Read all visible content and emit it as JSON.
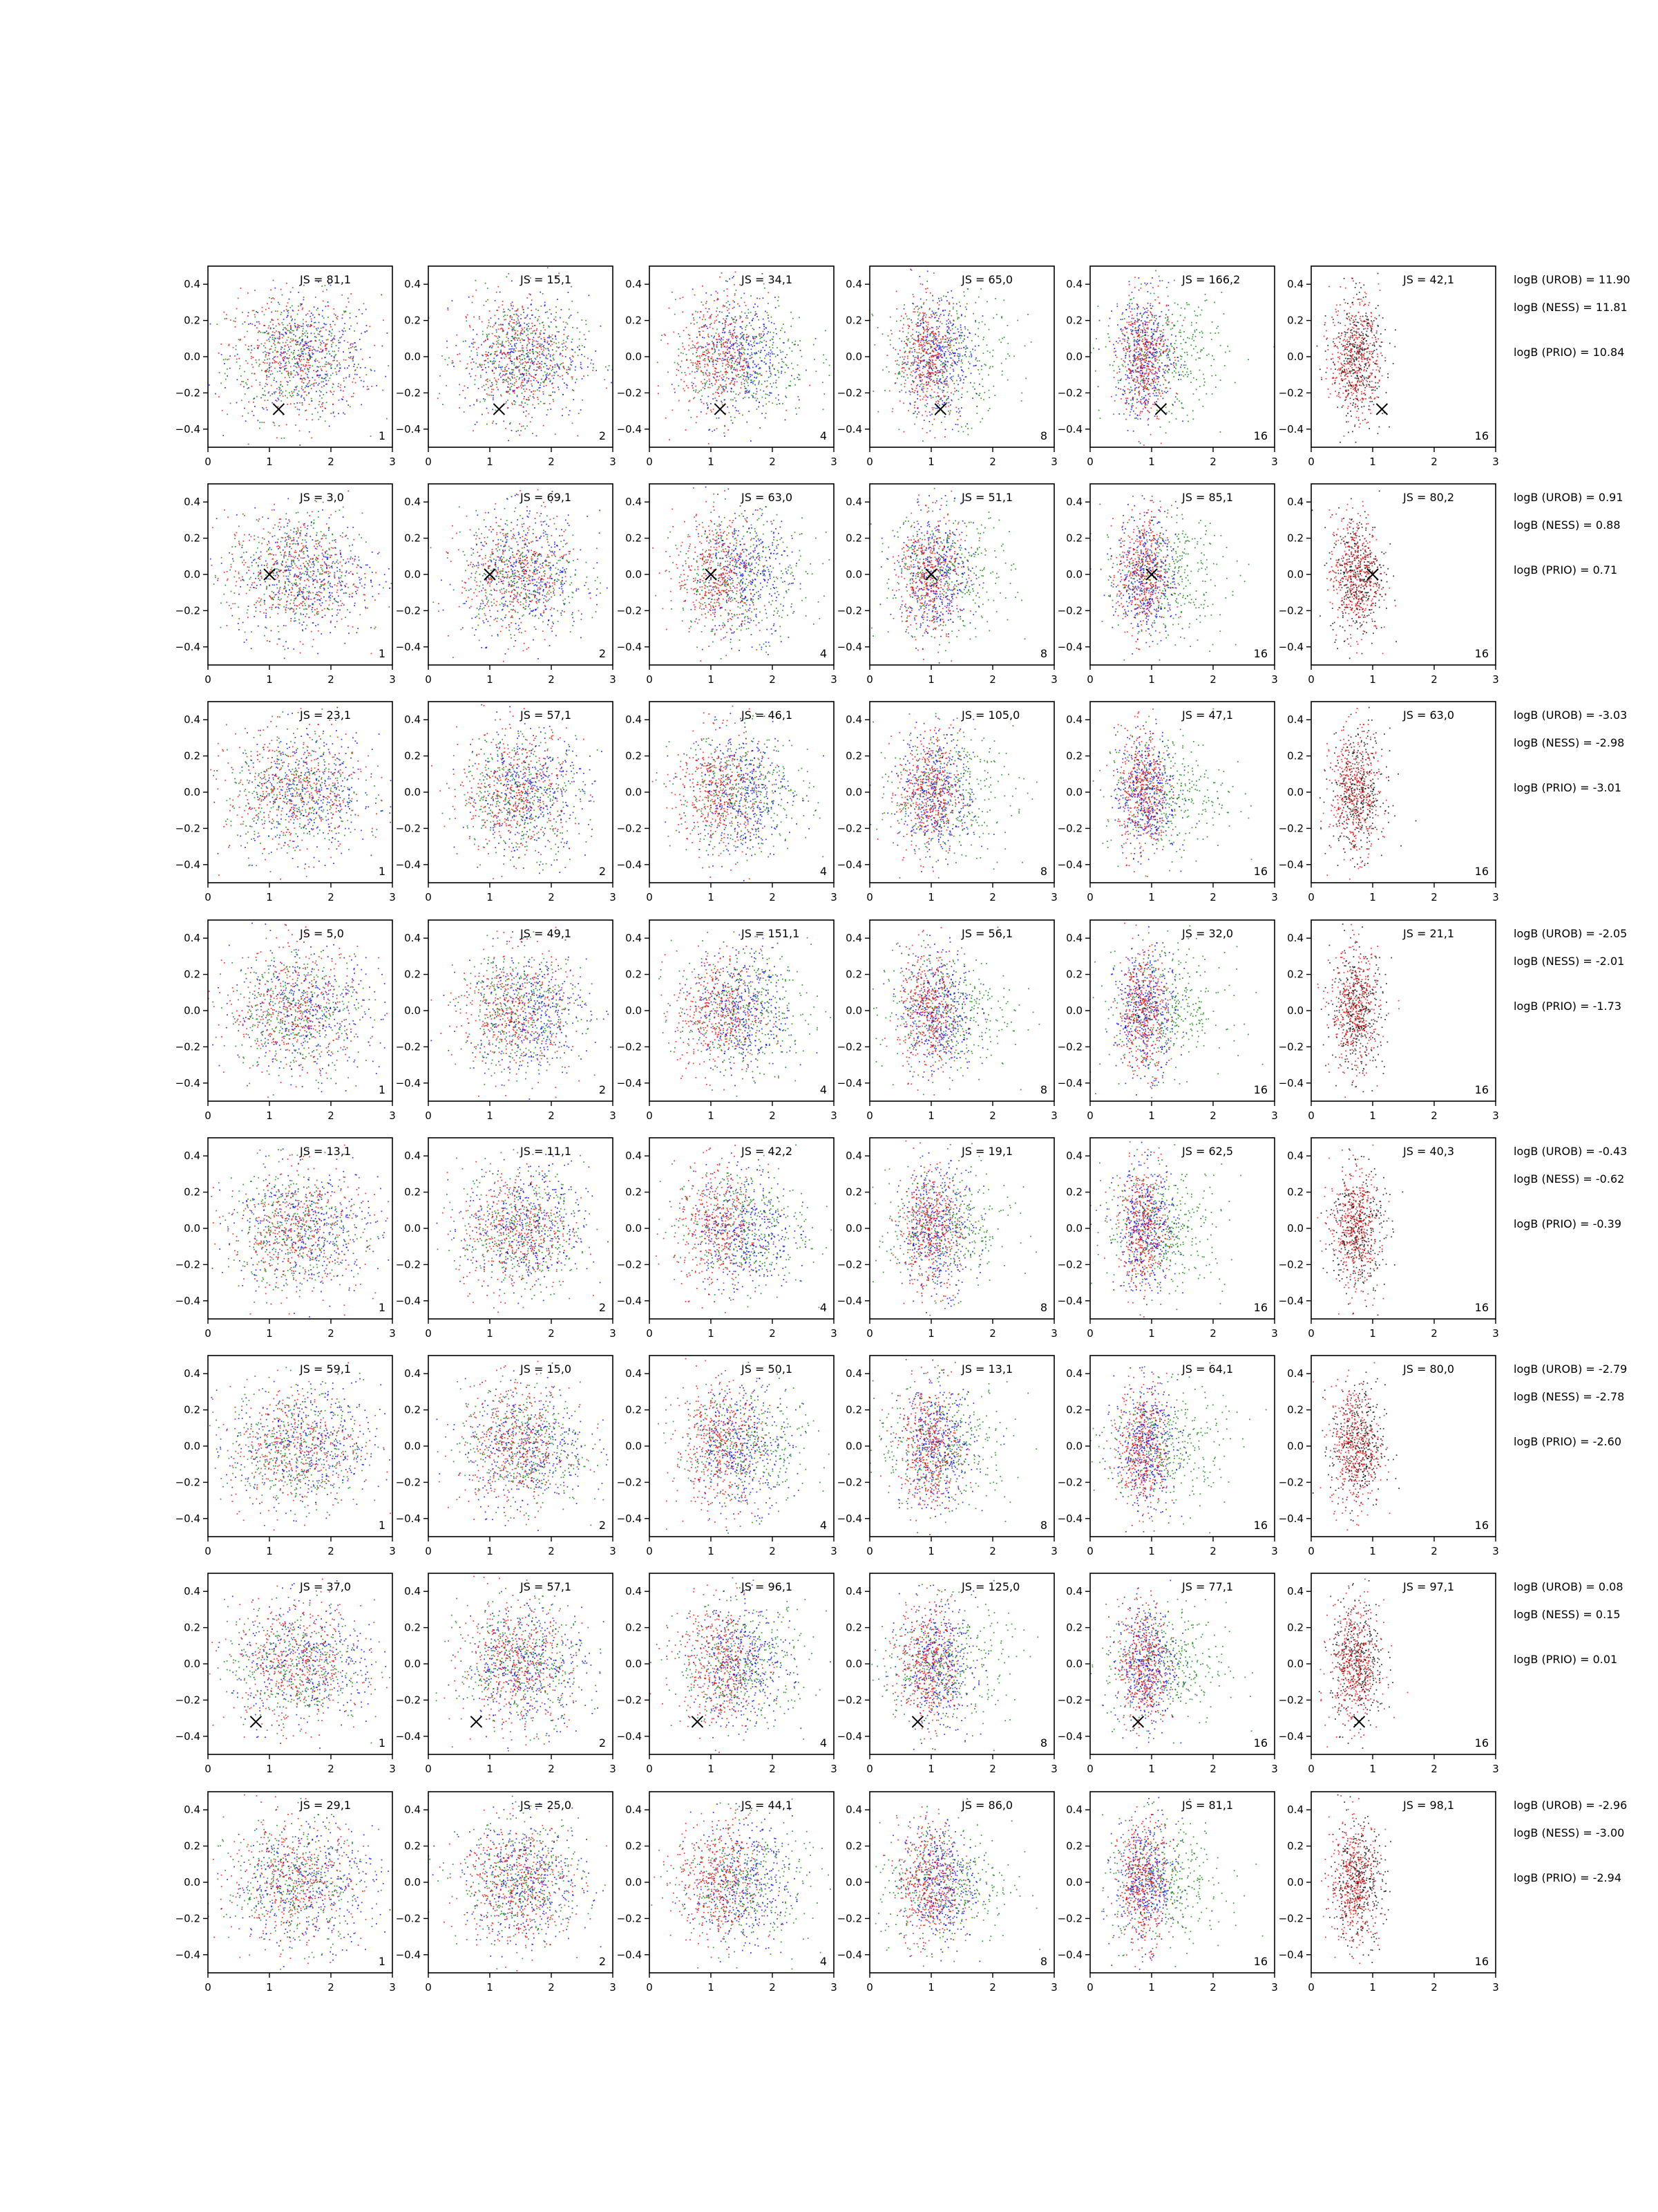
{
  "figure": {
    "axes": {
      "xlim": [
        0,
        3
      ],
      "ylim": [
        -0.5,
        0.5
      ],
      "xticks": [
        "0",
        "1",
        "2",
        "3"
      ],
      "yticks": [
        "0.4",
        "0.2",
        "0.0",
        "−0.2",
        "−0.4"
      ]
    },
    "colors": {
      "red": "#ff0000",
      "green": "#008000",
      "blue": "#0000ff",
      "black": "#000000"
    }
  },
  "chart_data": {
    "type": "scatter",
    "grid": false,
    "rows": [
      {
        "panels": [
          {
            "js": "JS = 81,1",
            "label": "1"
          },
          {
            "js": "JS = 15,1",
            "label": "2"
          },
          {
            "js": "JS = 34,1",
            "label": "4"
          },
          {
            "js": "JS = 65,0",
            "label": "8"
          },
          {
            "js": "JS = 166,2",
            "label": "16"
          },
          {
            "js": "JS = 42,1",
            "label": "16"
          }
        ],
        "marker": [
          1.15,
          -0.29
        ],
        "annotations": [
          "logB (UROB) = 11.90",
          "logB (NESS) = 11.81",
          "logB (PRIO) = 10.84"
        ]
      },
      {
        "panels": [
          {
            "js": "JS = 3,0",
            "label": "1"
          },
          {
            "js": "JS = 69,1",
            "label": "2"
          },
          {
            "js": "JS = 63,0",
            "label": "4"
          },
          {
            "js": "JS = 51,1",
            "label": "8"
          },
          {
            "js": "JS = 85,1",
            "label": "16"
          },
          {
            "js": "JS = 80,2",
            "label": "16"
          }
        ],
        "marker": [
          1.0,
          0.0
        ],
        "annotations": [
          "logB (UROB) = 0.91",
          "logB (NESS) = 0.88",
          "logB (PRIO) = 0.71"
        ]
      },
      {
        "panels": [
          {
            "js": "JS = 23,1",
            "label": "1"
          },
          {
            "js": "JS = 57,1",
            "label": "2"
          },
          {
            "js": "JS = 46,1",
            "label": "4"
          },
          {
            "js": "JS = 105,0",
            "label": "8"
          },
          {
            "js": "JS = 47,1",
            "label": "16"
          },
          {
            "js": "JS = 63,0",
            "label": "16"
          }
        ],
        "marker": null,
        "annotations": [
          "logB (UROB) = -3.03",
          "logB (NESS) = -2.98",
          "logB (PRIO) = -3.01"
        ]
      },
      {
        "panels": [
          {
            "js": "JS = 5,0",
            "label": "1"
          },
          {
            "js": "JS = 49,1",
            "label": "2"
          },
          {
            "js": "JS = 151,1",
            "label": "4"
          },
          {
            "js": "JS = 56,1",
            "label": "8"
          },
          {
            "js": "JS = 32,0",
            "label": "16"
          },
          {
            "js": "JS = 21,1",
            "label": "16"
          }
        ],
        "marker": null,
        "annotations": [
          "logB (UROB) = -2.05",
          "logB (NESS) = -2.01",
          "logB (PRIO) = -1.73"
        ]
      },
      {
        "panels": [
          {
            "js": "JS = 13,1",
            "label": "1"
          },
          {
            "js": "JS = 11,1",
            "label": "2"
          },
          {
            "js": "JS = 42,2",
            "label": "4"
          },
          {
            "js": "JS = 19,1",
            "label": "8"
          },
          {
            "js": "JS = 62,5",
            "label": "16"
          },
          {
            "js": "JS = 40,3",
            "label": "16"
          }
        ],
        "marker": null,
        "annotations": [
          "logB (UROB) = -0.43",
          "logB (NESS) = -0.62",
          "logB (PRIO) = -0.39"
        ]
      },
      {
        "panels": [
          {
            "js": "JS = 59,1",
            "label": "1"
          },
          {
            "js": "JS = 15,0",
            "label": "2"
          },
          {
            "js": "JS = 50,1",
            "label": "4"
          },
          {
            "js": "JS = 13,1",
            "label": "8"
          },
          {
            "js": "JS = 64,1",
            "label": "16"
          },
          {
            "js": "JS = 80,0",
            "label": "16"
          }
        ],
        "marker": null,
        "annotations": [
          "logB (UROB) = -2.79",
          "logB (NESS) = -2.78",
          "logB (PRIO) = -2.60"
        ]
      },
      {
        "panels": [
          {
            "js": "JS = 37,0",
            "label": "1"
          },
          {
            "js": "JS = 57,1",
            "label": "2"
          },
          {
            "js": "JS = 96,1",
            "label": "4"
          },
          {
            "js": "JS = 125,0",
            "label": "8"
          },
          {
            "js": "JS = 77,1",
            "label": "16"
          },
          {
            "js": "JS = 97,1",
            "label": "16"
          }
        ],
        "marker": [
          0.78,
          -0.32
        ],
        "annotations": [
          "logB (UROB) = 0.08",
          "logB (NESS) = 0.15",
          "logB (PRIO) = 0.01"
        ]
      },
      {
        "panels": [
          {
            "js": "JS = 29,1",
            "label": "1"
          },
          {
            "js": "JS = 25,0",
            "label": "2"
          },
          {
            "js": "JS = 44,1",
            "label": "4"
          },
          {
            "js": "JS = 86,0",
            "label": "8"
          },
          {
            "js": "JS = 81,1",
            "label": "16"
          },
          {
            "js": "JS = 98,1",
            "label": "16"
          }
        ],
        "marker": null,
        "annotations": [
          "logB (UROB) = -2.96",
          "logB (NESS) = -3.00",
          "logB (PRIO) = -2.94"
        ]
      }
    ]
  }
}
